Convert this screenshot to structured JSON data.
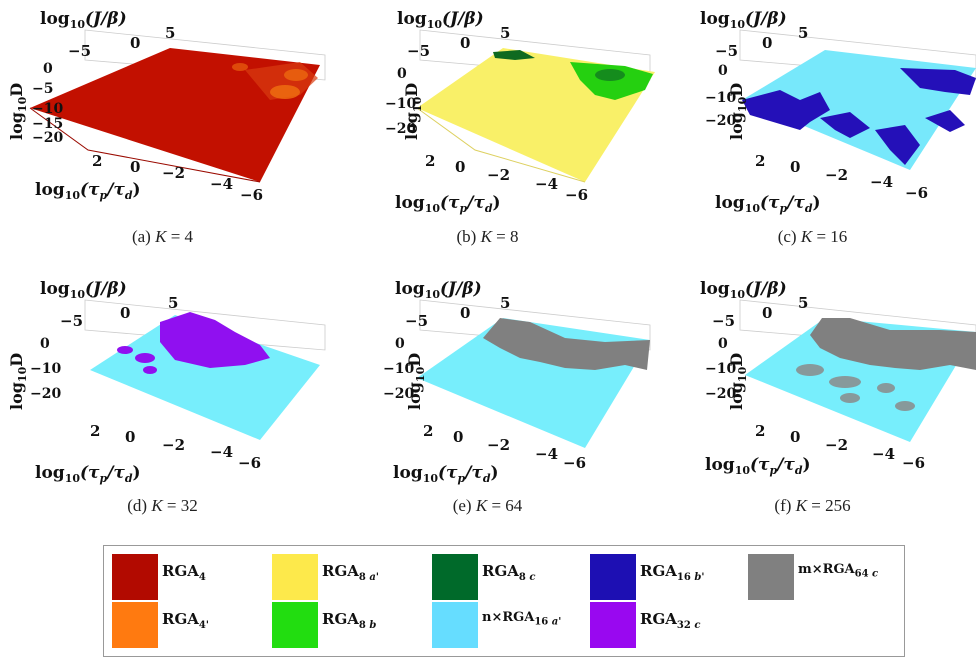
{
  "axes": {
    "z_label_base": "log",
    "z_label_sub": "10",
    "z_label_var": "D",
    "y_label_base": "log",
    "y_label_sub": "10",
    "y_label_var": "(J/β)",
    "x_label_base": "log",
    "x_label_sub": "10",
    "x_label_var": "(τ",
    "x_label_p": "p",
    "x_label_mid": "/τ",
    "x_label_d": "d",
    "x_label_end": ")",
    "x_ticks": [
      "2",
      "0",
      "−2",
      "−4",
      "−6"
    ],
    "y_ticks": [
      "−5",
      "0",
      "5"
    ],
    "z_ticks_a": [
      "0",
      "−5",
      "−10",
      "−15",
      "−20"
    ],
    "z_ticks_b": [
      "0",
      "−10",
      "−20"
    ]
  },
  "panels": [
    {
      "caption_prefix": "(a)",
      "caption_var": "K",
      "caption_eq": "= 4"
    },
    {
      "caption_prefix": "(b)",
      "caption_var": "K",
      "caption_eq": "= 8"
    },
    {
      "caption_prefix": "(c)",
      "caption_var": "K",
      "caption_eq": "= 16"
    },
    {
      "caption_prefix": "(d)",
      "caption_var": "K",
      "caption_eq": "= 32"
    },
    {
      "caption_prefix": "(e)",
      "caption_var": "K",
      "caption_eq": "= 64"
    },
    {
      "caption_prefix": "(f)",
      "caption_var": "K",
      "caption_eq": "= 256"
    }
  ],
  "legend": [
    {
      "base": "RGA",
      "sub": "4",
      "prime": "",
      "color": "#b20a00"
    },
    {
      "base": "RGA",
      "sub": "8",
      "prime": " a'",
      "color": "#fde94b"
    },
    {
      "base": "RGA",
      "sub": "8",
      "prime": " c",
      "color": "#006a2a"
    },
    {
      "base": "RGA",
      "sub": "16",
      "prime": " b'",
      "color": "#1d0fb3"
    },
    {
      "base": "m×RGA",
      "sub": "64",
      "prime": " c",
      "color": "#808080"
    },
    {
      "base": "RGA",
      "sub": "4'",
      "prime": "",
      "color": "#ff7a10"
    },
    {
      "base": "RGA",
      "sub": "8",
      "prime": " b",
      "color": "#22dd10"
    },
    {
      "base": "n×RGA",
      "sub": "16",
      "prime": " a'",
      "color": "#66ddff"
    },
    {
      "base": "RGA",
      "sub": "32",
      "prime": " c",
      "color": "#9908f0"
    }
  ]
}
